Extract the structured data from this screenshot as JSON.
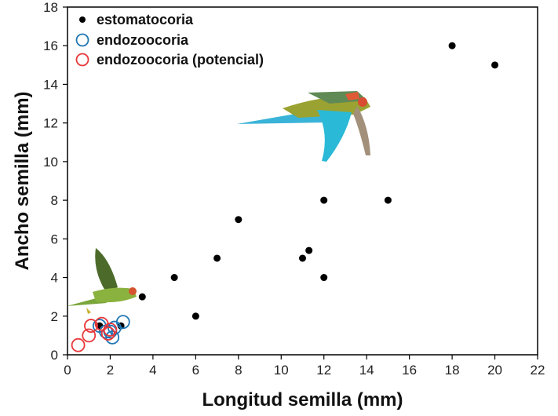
{
  "chart_data": {
    "type": "scatter",
    "xlabel": "Longitud semilla (mm)",
    "ylabel": "Ancho semilla (mm)",
    "xlim": [
      0,
      22
    ],
    "ylim": [
      0,
      18
    ],
    "xticks": [
      0,
      2,
      4,
      6,
      8,
      10,
      12,
      14,
      16,
      18,
      20,
      22
    ],
    "yticks": [
      0,
      2,
      4,
      6,
      8,
      10,
      12,
      14,
      16,
      18
    ],
    "grid": false,
    "legend_position": "top-left",
    "series": [
      {
        "name": "estomatocoria",
        "marker": "filled-circle",
        "color": "#000000",
        "points": [
          [
            1.5,
            1.5
          ],
          [
            2.5,
            1.5
          ],
          [
            3.5,
            3.0
          ],
          [
            5.0,
            4.0
          ],
          [
            6.0,
            2.0
          ],
          [
            7.0,
            5.0
          ],
          [
            8.0,
            7.0
          ],
          [
            11.0,
            5.0
          ],
          [
            11.3,
            5.4
          ],
          [
            12.0,
            4.0
          ],
          [
            12.0,
            8.0
          ],
          [
            15.0,
            8.0
          ],
          [
            18.0,
            16.0
          ],
          [
            20.0,
            15.0
          ]
        ]
      },
      {
        "name": "endozoocoria",
        "marker": "open-circle",
        "color": "#1f77b4",
        "points": [
          [
            1.8,
            1.2
          ],
          [
            2.1,
            0.9
          ],
          [
            2.6,
            1.7
          ],
          [
            2.2,
            1.4
          ],
          [
            1.5,
            1.5
          ],
          [
            2.0,
            1.2
          ]
        ]
      },
      {
        "name": "endozoocoria (potencial)",
        "marker": "open-circle",
        "color": "#e8383b",
        "points": [
          [
            0.5,
            0.5
          ],
          [
            1.0,
            1.0
          ],
          [
            1.1,
            1.5
          ],
          [
            1.6,
            1.6
          ],
          [
            2.0,
            1.3
          ],
          [
            1.9,
            1.1
          ]
        ]
      }
    ]
  }
}
